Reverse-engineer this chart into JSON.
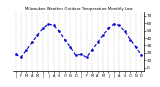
{
  "title": "Milwaukee Weather Outdoor Temperature Monthly Low",
  "x": [
    1,
    2,
    3,
    4,
    5,
    6,
    7,
    8,
    9,
    10,
    11,
    12,
    13,
    14,
    15,
    16,
    17,
    18,
    19,
    20,
    21,
    22,
    23,
    24
  ],
  "y": [
    18,
    14,
    24,
    34,
    44,
    53,
    59,
    57,
    49,
    38,
    28,
    17,
    18,
    14,
    24,
    34,
    44,
    53,
    59,
    57,
    49,
    38,
    28,
    17
  ],
  "months": [
    "J",
    "F",
    "M",
    "A",
    "M",
    "J",
    "J",
    "A",
    "S",
    "O",
    "N",
    "D",
    "J",
    "F",
    "M",
    "A",
    "M",
    "J",
    "J",
    "A",
    "S",
    "O",
    "N",
    "D"
  ],
  "line_color": "#0000cc",
  "line_style": "--",
  "marker": "o",
  "marker_size": 1.5,
  "ylim": [
    -5,
    75
  ],
  "yticks": [
    0,
    10,
    20,
    30,
    40,
    50,
    60,
    70
  ],
  "ytick_labels": [
    "0",
    "10",
    "20",
    "30",
    "40",
    "50",
    "60",
    "70"
  ],
  "grid_color": "#999999",
  "background_color": "#ffffff",
  "line_width": 0.8
}
